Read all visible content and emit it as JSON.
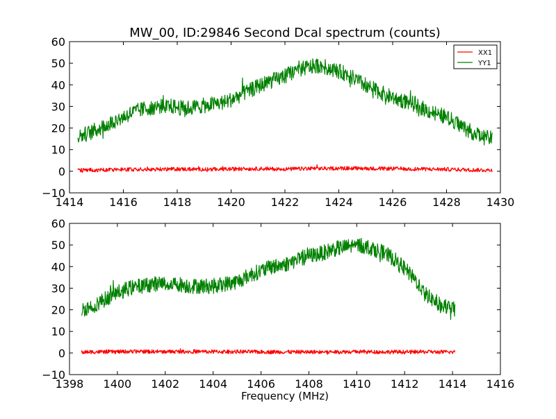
{
  "figure": {
    "title": "MW_00, ID:29846 Second Dcal spectrum (counts)",
    "xlabel": "Frequency (MHz)"
  },
  "chart_data": [
    {
      "type": "line",
      "title": "MW_00, ID:29846 Second Dcal spectrum (counts)",
      "xlabel": "",
      "ylabel": "",
      "xlim": [
        1414,
        1430
      ],
      "ylim": [
        -10,
        60
      ],
      "xticks": [
        1414,
        1416,
        1418,
        1420,
        1422,
        1424,
        1426,
        1428,
        1430
      ],
      "yticks": [
        -10,
        0,
        10,
        20,
        30,
        40,
        50,
        60
      ],
      "grid": false,
      "legend": {
        "placement": "top-right",
        "entries": [
          "XX1",
          "YY1"
        ]
      },
      "series": [
        {
          "name": "XX1",
          "color": "#ff0000",
          "x": [
            1414.3,
            1415.0,
            1416.0,
            1417.0,
            1418.0,
            1419.0,
            1420.0,
            1421.0,
            1422.0,
            1423.0,
            1424.0,
            1425.0,
            1426.0,
            1427.0,
            1428.0,
            1429.0,
            1429.7
          ],
          "y": [
            0.5,
            0.6,
            0.8,
            0.9,
            1.0,
            0.9,
            1.0,
            1.2,
            1.0,
            1.2,
            1.4,
            1.3,
            1.2,
            1.0,
            0.9,
            0.6,
            0.5
          ]
        },
        {
          "name": "YY1",
          "color": "#008000",
          "x": [
            1414.3,
            1414.8,
            1415.3,
            1415.8,
            1416.3,
            1416.8,
            1417.3,
            1417.8,
            1418.3,
            1418.8,
            1419.3,
            1419.8,
            1420.3,
            1420.8,
            1421.3,
            1421.8,
            1422.3,
            1422.8,
            1423.3,
            1423.8,
            1424.3,
            1424.8,
            1425.3,
            1425.8,
            1426.3,
            1426.8,
            1427.3,
            1427.8,
            1428.3,
            1428.8,
            1429.3,
            1429.7
          ],
          "y": [
            16,
            18,
            21,
            24,
            27,
            29,
            30,
            30,
            29,
            30,
            31,
            32,
            35,
            38,
            41,
            43,
            46,
            48,
            49,
            47,
            45,
            41,
            38,
            35,
            33,
            31,
            28,
            26,
            23,
            19,
            16,
            15
          ]
        }
      ]
    },
    {
      "type": "line",
      "title": "",
      "xlabel": "Frequency (MHz)",
      "ylabel": "",
      "xlim": [
        1398,
        1416
      ],
      "ylim": [
        -10,
        60
      ],
      "xticks": [
        1398,
        1400,
        1402,
        1404,
        1406,
        1408,
        1410,
        1412,
        1414,
        1416
      ],
      "yticks": [
        -10,
        0,
        10,
        20,
        30,
        40,
        50,
        60
      ],
      "grid": false,
      "series": [
        {
          "color": "#ff0000",
          "x": [
            1398.5,
            1399.0,
            1400.0,
            1401.0,
            1402.0,
            1403.0,
            1404.0,
            1405.0,
            1406.0,
            1407.0,
            1408.0,
            1409.0,
            1410.0,
            1411.0,
            1412.0,
            1413.0,
            1414.1
          ],
          "y": [
            0.4,
            0.5,
            0.6,
            0.7,
            0.6,
            0.7,
            0.6,
            0.6,
            0.5,
            0.5,
            0.5,
            0.5,
            0.6,
            0.5,
            0.5,
            0.5,
            0.4
          ]
        },
        {
          "color": "#008000",
          "x": [
            1398.5,
            1399.0,
            1399.5,
            1400.0,
            1400.5,
            1401.0,
            1401.5,
            1402.0,
            1402.5,
            1403.0,
            1403.5,
            1404.0,
            1404.5,
            1405.0,
            1405.5,
            1406.0,
            1406.5,
            1407.0,
            1407.5,
            1408.0,
            1408.5,
            1409.0,
            1409.5,
            1410.0,
            1410.5,
            1411.0,
            1411.5,
            1412.0,
            1412.5,
            1413.0,
            1413.5,
            1414.1
          ],
          "y": [
            20,
            22,
            25,
            28,
            30,
            31,
            32,
            32,
            32,
            31,
            31,
            31,
            32,
            33,
            36,
            38,
            40,
            41,
            43,
            45,
            46,
            48,
            49,
            50,
            49,
            47,
            44,
            39,
            33,
            26,
            22,
            20
          ]
        }
      ]
    }
  ]
}
